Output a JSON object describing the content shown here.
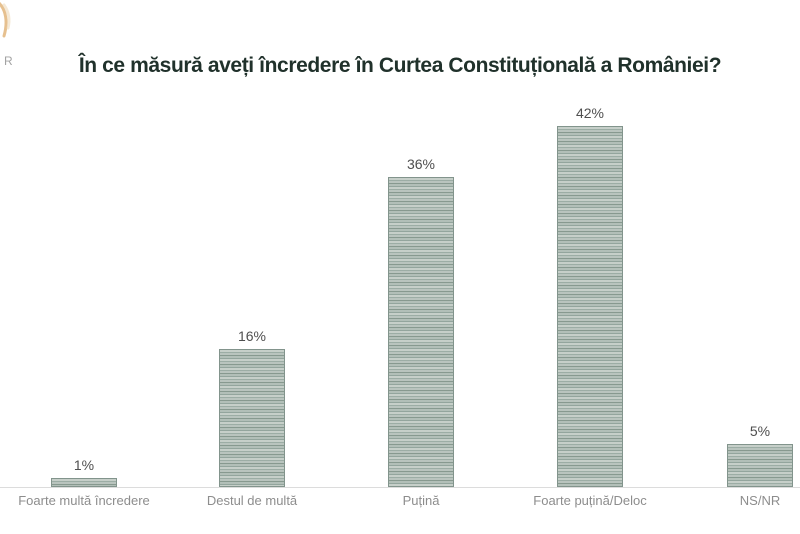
{
  "logo": {
    "letter": "R",
    "mark_color": "#ddab69"
  },
  "chart_data": {
    "type": "bar",
    "title": "În ce măsură aveți încredere în Curtea Constituțională a României?",
    "categories": [
      "Foarte multă încredere",
      "Destul de multă",
      "Puțină",
      "Foarte puțină/Deloc",
      "NS/NR"
    ],
    "values": [
      1,
      16,
      36,
      42,
      5
    ],
    "value_labels": [
      "1%",
      "16%",
      "36%",
      "42%",
      "5%"
    ],
    "unit": "%",
    "ylim": [
      0,
      45
    ],
    "grid": "off",
    "legend": "none",
    "xlabel": "",
    "ylabel": "",
    "colors": {
      "bar_base": "#b6c2bb",
      "bar_stripe": "#8a9d95",
      "bar_border": "#82948c",
      "title_text": "#20312b",
      "value_label_text": "#4f4f4f",
      "category_label_text": "#8d8d8d",
      "axis_line": "#dcdcdc"
    }
  }
}
